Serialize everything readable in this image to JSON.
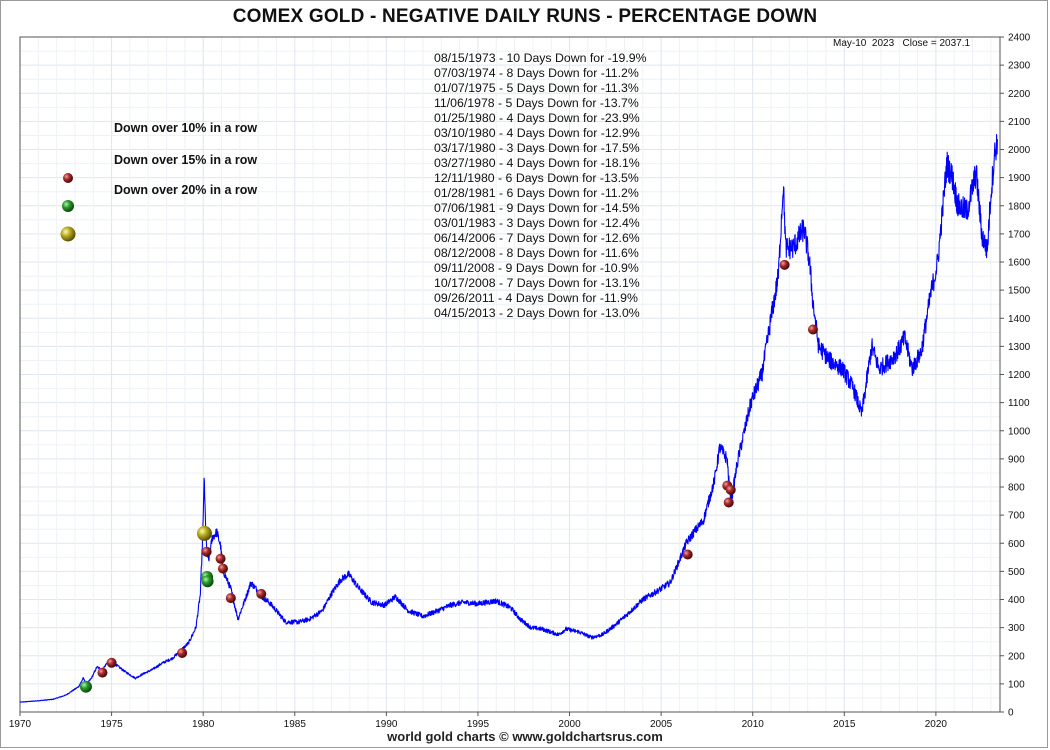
{
  "header": {
    "title": "COMEX GOLD - NEGATIVE DAILY RUNS - PERCENTAGE DOWN"
  },
  "footer": {
    "credit": "world gold charts © www.goldchartsrus.com"
  },
  "last_quote": {
    "date": "May-10  2023",
    "close": "Close = 2037.1"
  },
  "legend": {
    "items": [
      {
        "label": "Down over 10% in a row",
        "color": "#8b1a1a"
      },
      {
        "label": "Down over 15% in a row",
        "color": "#1e8a1e"
      },
      {
        "label": "Down over 20% in a row",
        "color": "#a39a18"
      }
    ]
  },
  "events": [
    "08/15/1973 - 10 Days Down for -19.9%",
    "07/03/1974 - 8 Days Down for -11.2%",
    "01/07/1975 - 5 Days Down for -11.3%",
    "11/06/1978 - 5 Days Down for -13.7%",
    "01/25/1980 - 4 Days Down for -23.9%",
    "03/10/1980 - 4 Days Down for -12.9%",
    "03/17/1980 - 3 Days Down for -17.5%",
    "03/27/1980 - 4 Days Down for -18.1%",
    "12/11/1980 - 6 Days Down for -13.5%",
    "01/28/1981 - 6 Days Down for -11.2%",
    "07/06/1981 - 9 Days Down for -14.5%",
    "03/01/1983 - 3 Days Down for -12.4%",
    "06/14/2006 - 7 Days Down for -12.6%",
    "08/12/2008 - 8 Days Down for -11.6%",
    "09/11/2008 - 9 Days Down for -10.9%",
    "10/17/2008 - 7 Days Down for -13.1%",
    "09/26/2011 - 4 Days Down for -11.9%",
    "04/15/2013 - 2 Days Down for -13.0%"
  ],
  "chart_data": {
    "type": "line",
    "title": "COMEX GOLD - NEGATIVE DAILY RUNS - PERCENTAGE DOWN",
    "xlabel": "",
    "ylabel": "",
    "xlim": [
      1970,
      2023.5
    ],
    "ylim": [
      0,
      2400
    ],
    "x_ticks": [
      1970,
      1975,
      1980,
      1985,
      1990,
      1995,
      2000,
      2005,
      2010,
      2015,
      2020
    ],
    "y_ticks": [
      0,
      100,
      200,
      300,
      400,
      500,
      600,
      700,
      800,
      900,
      1000,
      1100,
      1200,
      1300,
      1400,
      1500,
      1600,
      1700,
      1800,
      1900,
      2000,
      2100,
      2200,
      2300,
      2400
    ],
    "y_axis_side": "right",
    "grid": true,
    "line_color": "#0000ff",
    "series": [
      {
        "x": [
          1970.0,
          1971.0,
          1971.8,
          1972.5,
          1973.2,
          1973.45,
          1973.65,
          1973.9,
          1974.2,
          1974.5,
          1974.8,
          1975.0,
          1975.3,
          1975.7,
          1976.3,
          1976.7,
          1977.2,
          1977.8,
          1978.3,
          1978.8,
          1979.2,
          1979.6,
          1979.85,
          1980.0,
          1980.05,
          1980.12,
          1980.2,
          1980.3,
          1980.5,
          1980.75,
          1980.95,
          1981.1,
          1981.5,
          1981.9,
          1982.4,
          1982.6,
          1983.0,
          1983.2,
          1983.6,
          1984.0,
          1984.5,
          1985.2,
          1985.8,
          1986.5,
          1987.0,
          1987.5,
          1987.95,
          1988.5,
          1989.2,
          1989.9,
          1990.5,
          1991.2,
          1992.0,
          1992.8,
          1993.5,
          1994.2,
          1995.0,
          1996.0,
          1996.8,
          1997.3,
          1997.9,
          1998.5,
          1999.4,
          1999.8,
          2000.5,
          2001.2,
          2001.8,
          2002.5,
          2003.2,
          2004.0,
          2004.8,
          2005.5,
          2006.0,
          2006.37,
          2006.8,
          2007.3,
          2007.9,
          2008.2,
          2008.6,
          2008.75,
          2008.85,
          2009.2,
          2009.9,
          2010.5,
          2011.0,
          2011.4,
          2011.67,
          2011.8,
          2012.2,
          2012.8,
          2013.1,
          2013.3,
          2013.6,
          2014.2,
          2014.9,
          2015.5,
          2015.95,
          2016.5,
          2016.9,
          2017.5,
          2017.9,
          2018.3,
          2018.7,
          2019.2,
          2019.7,
          2020.1,
          2020.6,
          2020.9,
          2021.2,
          2021.7,
          2022.2,
          2022.5,
          2022.8,
          2023.0,
          2023.2,
          2023.36
        ],
        "y": [
          35,
          40,
          45,
          60,
          90,
          120,
          100,
          120,
          160,
          150,
          180,
          175,
          165,
          145,
          120,
          135,
          150,
          175,
          190,
          220,
          245,
          300,
          420,
          680,
          840,
          680,
          560,
          540,
          620,
          640,
          590,
          500,
          440,
          330,
          420,
          460,
          430,
          410,
          390,
          360,
          320,
          320,
          330,
          360,
          420,
          470,
          490,
          440,
          390,
          380,
          410,
          360,
          340,
          360,
          380,
          390,
          385,
          395,
          370,
          330,
          300,
          295,
          275,
          295,
          285,
          265,
          275,
          310,
          350,
          400,
          430,
          460,
          540,
          600,
          640,
          680,
          820,
          940,
          900,
          780,
          760,
          900,
          1100,
          1200,
          1400,
          1550,
          1880,
          1650,
          1650,
          1720,
          1600,
          1450,
          1300,
          1250,
          1220,
          1150,
          1060,
          1300,
          1220,
          1250,
          1280,
          1330,
          1220,
          1280,
          1480,
          1600,
          1950,
          1900,
          1800,
          1780,
          1920,
          1700,
          1640,
          1840,
          1980,
          2037
        ]
      }
    ],
    "markers": [
      {
        "x": 1973.6,
        "y": 90,
        "level": "15%"
      },
      {
        "x": 1974.5,
        "y": 140,
        "level": "10%"
      },
      {
        "x": 1975.0,
        "y": 175,
        "level": "10%"
      },
      {
        "x": 1978.85,
        "y": 210,
        "level": "10%"
      },
      {
        "x": 1980.07,
        "y": 635,
        "level": "20%"
      },
      {
        "x": 1980.19,
        "y": 570,
        "level": "10%"
      },
      {
        "x": 1980.21,
        "y": 480,
        "level": "15%"
      },
      {
        "x": 1980.24,
        "y": 465,
        "level": "15%"
      },
      {
        "x": 1980.95,
        "y": 545,
        "level": "10%"
      },
      {
        "x": 1981.08,
        "y": 510,
        "level": "10%"
      },
      {
        "x": 1981.51,
        "y": 405,
        "level": "10%"
      },
      {
        "x": 1983.17,
        "y": 420,
        "level": "10%"
      },
      {
        "x": 2006.45,
        "y": 560,
        "level": "10%"
      },
      {
        "x": 2008.61,
        "y": 805,
        "level": "10%"
      },
      {
        "x": 2008.69,
        "y": 745,
        "level": "10%"
      },
      {
        "x": 2008.8,
        "y": 790,
        "level": "10%"
      },
      {
        "x": 2011.74,
        "y": 1590,
        "level": "10%"
      },
      {
        "x": 2013.29,
        "y": 1360,
        "level": "10%"
      }
    ]
  }
}
